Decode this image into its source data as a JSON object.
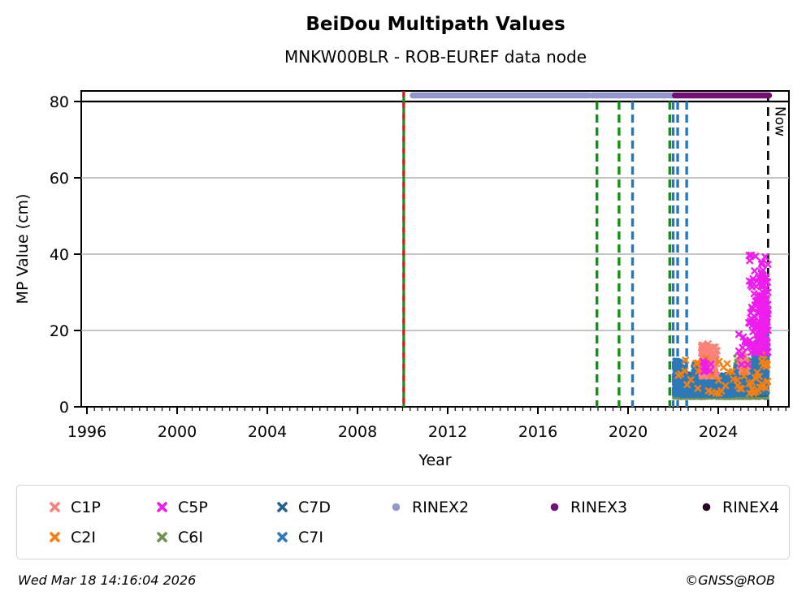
{
  "title": "BeiDou Multipath Values",
  "subtitle": "MNKW00BLR - ROB-EUREF data node",
  "footer": {
    "timestamp": "Wed Mar 18 14:16:04 2026",
    "credit": "©GNSS@ROB"
  },
  "chart_data": {
    "type": "scatter",
    "title": "BeiDou Multipath Values",
    "subtitle": "MNKW00BLR - ROB-EUREF data node",
    "xlabel": "Year",
    "ylabel": "MP Value (cm)",
    "xlim": [
      1995.75,
      2027.15
    ],
    "ylim": [
      0,
      82.8
    ],
    "xticks": [
      1996,
      2000,
      2004,
      2008,
      2012,
      2016,
      2020,
      2024
    ],
    "minor_ticks_per_year": 3,
    "yticks": [
      0,
      20,
      40,
      60,
      80
    ],
    "grid_y": [
      20,
      40,
      60
    ],
    "grid_color": "#b0b0b0",
    "top_line_y": 80,
    "now": {
      "x": 2026.21,
      "label": "Now",
      "color": "#000000"
    },
    "event_lines": [
      {
        "x": 2010.05,
        "style": "solid",
        "color": "#109410",
        "overlay": "#e41414"
      },
      {
        "x": 2018.62,
        "style": "dashed",
        "color": "#109410"
      },
      {
        "x": 2019.6,
        "style": "dashed",
        "color": "#109410"
      },
      {
        "x": 2020.2,
        "style": "dashed",
        "color": "#2779be"
      },
      {
        "x": 2021.85,
        "style": "dashed",
        "color": "#109410"
      },
      {
        "x": 2022.0,
        "style": "dashed",
        "color": "#2779be"
      },
      {
        "x": 2022.2,
        "style": "dashed",
        "color": "#2779be"
      },
      {
        "x": 2022.6,
        "style": "dashed",
        "color": "#2779be"
      }
    ],
    "rinex_bars": [
      {
        "name": "RINEX2",
        "color": "#9396cf",
        "y": 81.6,
        "segments": [
          [
            2010.45,
            2018.25
          ],
          [
            2018.4,
            2022.05
          ]
        ]
      },
      {
        "name": "RINEX3",
        "color": "#740f74",
        "y": 81.6,
        "segments": [
          [
            2022.08,
            2026.25
          ]
        ]
      }
    ],
    "series": [
      {
        "name": "C6I",
        "color": "#6e9251",
        "marker": "x",
        "render": "dot",
        "clusters": [
          {
            "x0": 2022.02,
            "x1": 2026.2,
            "ymin": 2.2,
            "ymax": 7.5,
            "n": 1500,
            "bias": 1.6
          },
          {
            "x0": 2024.7,
            "x1": 2026.2,
            "ymin": 5.0,
            "ymax": 14.0,
            "n": 260,
            "bias": 2.2
          },
          {
            "x0": 2025.7,
            "x1": 2026.2,
            "ymin": 8.0,
            "ymax": 21.0,
            "n": 120,
            "bias": 2.2
          }
        ]
      },
      {
        "name": "C7D",
        "color": "#27638f",
        "marker": "x",
        "render": "dot",
        "clusters": [
          {
            "x0": 2022.02,
            "x1": 2026.2,
            "ymin": 3.0,
            "ymax": 9.0,
            "n": 850,
            "bias": 1.8
          }
        ]
      },
      {
        "name": "C7I",
        "color": "#2c79b9",
        "marker": "x",
        "render": "dot",
        "clusters": [
          {
            "x0": 2022.02,
            "x1": 2022.6,
            "ymin": 3.0,
            "ymax": 12.5,
            "n": 420,
            "bias": 2.0
          },
          {
            "x0": 2022.3,
            "x1": 2024.7,
            "ymin": 2.8,
            "ymax": 8.5,
            "n": 1400,
            "bias": 1.8
          },
          {
            "x0": 2022.85,
            "x1": 2023.3,
            "ymin": 6.0,
            "ymax": 12.0,
            "n": 180,
            "bias": 1.5
          },
          {
            "x0": 2024.7,
            "x1": 2025.5,
            "ymin": 3.0,
            "ymax": 11.0,
            "n": 500,
            "bias": 1.9
          },
          {
            "x0": 2025.5,
            "x1": 2026.22,
            "ymin": 3.5,
            "ymax": 17.0,
            "n": 500,
            "bias": 1.9
          },
          {
            "x0": 2026.0,
            "x1": 2026.22,
            "ymin": 8.0,
            "ymax": 25.0,
            "n": 120,
            "bias": 1.7
          }
        ]
      },
      {
        "name": "C1P",
        "color": "#f98378",
        "marker": "x",
        "render": "x",
        "clusters": [
          {
            "x0": 2023.25,
            "x1": 2023.95,
            "ymin": 8.0,
            "ymax": 16.5,
            "n": 110,
            "bias": 1.3
          },
          {
            "x0": 2024.9,
            "x1": 2025.35,
            "ymin": 9.0,
            "ymax": 14.5,
            "n": 26,
            "bias": 1.3
          }
        ]
      },
      {
        "name": "C2I",
        "color": "#f77f0e",
        "marker": "x",
        "render": "x",
        "clusters": [
          {
            "x0": 2022.1,
            "x1": 2026.2,
            "ymin": 3.5,
            "ymax": 13.0,
            "n": 55,
            "bias": 1.6
          },
          {
            "x0": 2025.9,
            "x1": 2026.2,
            "ymin": 10.0,
            "ymax": 17.0,
            "n": 10,
            "bias": 1.2
          }
        ]
      },
      {
        "name": "C5P",
        "color": "#ee1dee",
        "marker": "x",
        "render": "x",
        "clusters": [
          {
            "x0": 2023.3,
            "x1": 2023.7,
            "ymin": 9.0,
            "ymax": 13.0,
            "n": 9,
            "bias": 1.2
          },
          {
            "x0": 2024.9,
            "x1": 2025.4,
            "ymin": 11.0,
            "ymax": 19.0,
            "n": 14,
            "bias": 1.3
          },
          {
            "x0": 2025.35,
            "x1": 2026.22,
            "ymin": 14.0,
            "ymax": 40.0,
            "n": 110,
            "bias": 1.4
          },
          {
            "x0": 2025.9,
            "x1": 2026.22,
            "ymin": 20.0,
            "ymax": 35.0,
            "n": 60,
            "bias": 1.0
          }
        ]
      }
    ],
    "legend": {
      "items": [
        {
          "label": "C1P",
          "color": "#f98378",
          "marker": "x"
        },
        {
          "label": "C5P",
          "color": "#ee1dee",
          "marker": "x"
        },
        {
          "label": "C7D",
          "color": "#27638f",
          "marker": "x"
        },
        {
          "label": "RINEX2",
          "color": "#9396cf",
          "marker": "circle"
        },
        {
          "label": "RINEX3",
          "color": "#740f74",
          "marker": "circle"
        },
        {
          "label": "RINEX4",
          "color": "#270327",
          "marker": "circle"
        },
        {
          "label": "C2I",
          "color": "#f77f0e",
          "marker": "x"
        },
        {
          "label": "C6I",
          "color": "#6e9251",
          "marker": "x"
        },
        {
          "label": "C7I",
          "color": "#2c79b9",
          "marker": "x"
        }
      ]
    }
  }
}
